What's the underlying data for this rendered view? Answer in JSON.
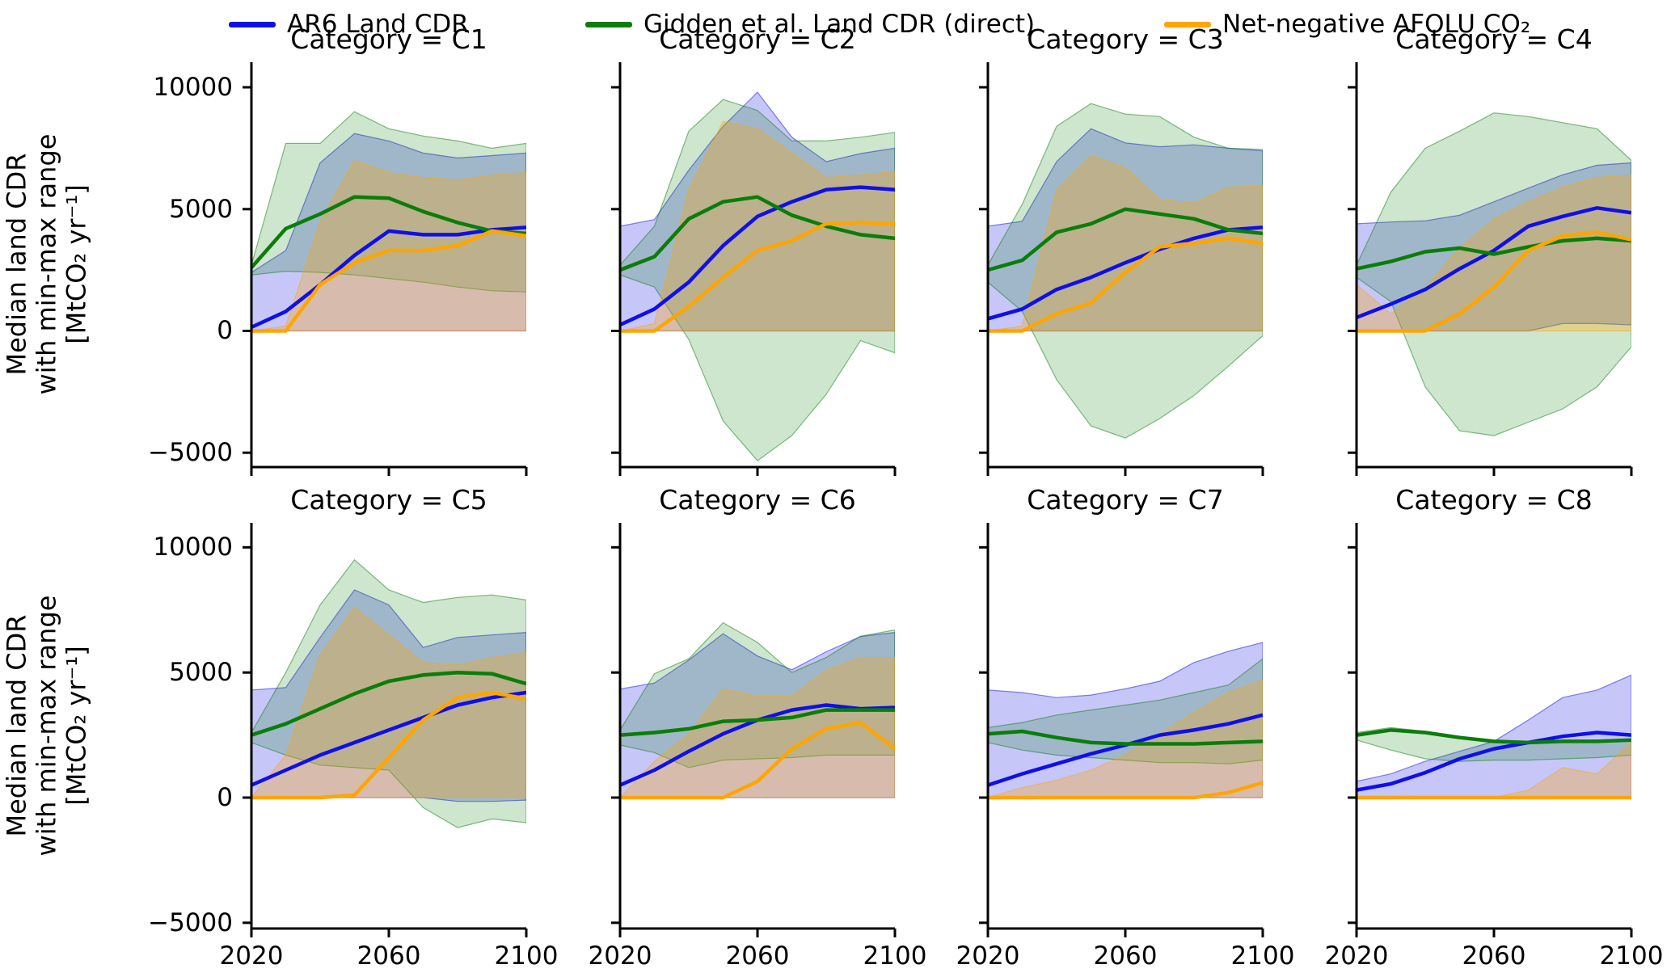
{
  "chart_data": {
    "type": "line",
    "title": "",
    "xlabel": "",
    "ylabel_lines": [
      "Median land CDR",
      "with min-max range",
      "[MtCO₂ yr⁻¹]"
    ],
    "x": [
      2020,
      2030,
      2040,
      2050,
      2060,
      2070,
      2080,
      2090,
      2100
    ],
    "xticks": [
      2020,
      2060,
      2100
    ],
    "xtick_labels": [
      "2020",
      "2060",
      "2100"
    ],
    "yticks": [
      -5000,
      0,
      5000,
      10000
    ],
    "ytick_labels": [
      "−5000",
      "0",
      "5000",
      "10000"
    ],
    "ylim": [
      -5600,
      11000
    ],
    "grid": false,
    "legend_position": "top",
    "legend": [
      {
        "key": "ar6",
        "label": "AR6 Land CDR",
        "color": "#0f0fe8"
      },
      {
        "key": "gidden",
        "label": "Gidden et al. Land CDR (direct)",
        "color": "#0a7d0a"
      },
      {
        "key": "afolu",
        "label": "Net-negative AFOLU CO₂",
        "color": "#ffa500"
      }
    ],
    "panels": [
      {
        "title": "Category = C1",
        "series": {
          "ar6": {
            "median": [
              150,
              800,
              1900,
              3100,
              4100,
              3950,
              3950,
              4150,
              4250
            ],
            "min": [
              0,
              0,
              0,
              0,
              0,
              0,
              0,
              0,
              0
            ],
            "max": [
              2400,
              3300,
              6900,
              8100,
              7800,
              7300,
              7100,
              7200,
              7300
            ]
          },
          "gidden": {
            "median": [
              2600,
              4200,
              4800,
              5500,
              5450,
              4900,
              4450,
              4100,
              4000
            ],
            "min": [
              2300,
              2450,
              2400,
              2300,
              2150,
              2000,
              1800,
              1650,
              1600
            ],
            "max": [
              2700,
              7700,
              7700,
              9000,
              8300,
              8000,
              7800,
              7500,
              7700
            ]
          },
          "afolu": {
            "median": [
              0,
              0,
              1900,
              2800,
              3300,
              3300,
              3500,
              4100,
              3900
            ],
            "min": [
              0,
              0,
              0,
              0,
              0,
              0,
              0,
              0,
              0
            ],
            "max": [
              0,
              200,
              4500,
              7000,
              6500,
              6300,
              6200,
              6400,
              6500
            ]
          }
        }
      },
      {
        "title": "Category = C2",
        "series": {
          "ar6": {
            "median": [
              250,
              900,
              2000,
              3500,
              4700,
              5300,
              5800,
              5900,
              5800
            ],
            "min": [
              0,
              0,
              0,
              0,
              0,
              0,
              0,
              0,
              0
            ],
            "max": [
              4300,
              4570,
              6600,
              8400,
              9800,
              7950,
              6950,
              7280,
              7500
            ]
          },
          "gidden": {
            "median": [
              2500,
              3050,
              4600,
              5300,
              5500,
              4750,
              4300,
              3950,
              3800
            ],
            "min": [
              2300,
              1800,
              -350,
              -3700,
              -5330,
              -4300,
              -2600,
              -400,
              -900
            ],
            "max": [
              2700,
              4300,
              8200,
              9500,
              9050,
              7800,
              7800,
              7950,
              8150
            ]
          },
          "afolu": {
            "median": [
              0,
              0,
              1000,
              2200,
              3300,
              3700,
              4400,
              4450,
              4400
            ],
            "min": [
              0,
              0,
              0,
              0,
              0,
              0,
              0,
              0,
              0
            ],
            "max": [
              0,
              300,
              5800,
              8600,
              8300,
              7300,
              6300,
              6400,
              6550
            ]
          }
        }
      },
      {
        "title": "Category = C3",
        "series": {
          "ar6": {
            "median": [
              500,
              900,
              1700,
              2200,
              2800,
              3350,
              3800,
              4150,
              4250
            ],
            "min": [
              0,
              0,
              0,
              0,
              0,
              0,
              0,
              0,
              0
            ],
            "max": [
              4300,
              4500,
              6950,
              8300,
              7720,
              7560,
              7640,
              7500,
              7390
            ]
          },
          "gidden": {
            "median": [
              2500,
              2900,
              4050,
              4400,
              5000,
              4800,
              4600,
              4150,
              4000
            ],
            "min": [
              2000,
              800,
              -2000,
              -3900,
              -4400,
              -3600,
              -2650,
              -1450,
              -200
            ],
            "max": [
              2700,
              5200,
              8400,
              9330,
              8900,
              8800,
              7950,
              7500,
              7450
            ]
          },
          "afolu": {
            "median": [
              0,
              0,
              700,
              1150,
              2400,
              3450,
              3600,
              3800,
              3600
            ],
            "min": [
              0,
              0,
              0,
              0,
              0,
              0,
              0,
              0,
              0
            ],
            "max": [
              0,
              200,
              5800,
              7200,
              6700,
              5400,
              5250,
              5900,
              5950
            ]
          }
        }
      },
      {
        "title": "Category = C4",
        "series": {
          "ar6": {
            "median": [
              550,
              1100,
              1700,
              2550,
              3300,
              4300,
              4700,
              5050,
              4850
            ],
            "min": [
              0,
              0,
              0,
              0,
              0,
              0,
              300,
              300,
              250
            ],
            "max": [
              4400,
              4470,
              4520,
              4750,
              5300,
              5860,
              6410,
              6800,
              6900
            ]
          },
          "gidden": {
            "median": [
              2550,
              2850,
              3250,
              3400,
              3150,
              3450,
              3700,
              3800,
              3700
            ],
            "min": [
              2200,
              1200,
              -2300,
              -4100,
              -4300,
              -3750,
              -3200,
              -2300,
              -650
            ],
            "max": [
              2700,
              5700,
              7500,
              8200,
              8950,
              8800,
              8550,
              8300,
              7000
            ]
          },
          "afolu": {
            "median": [
              0,
              0,
              0,
              700,
              1800,
              3300,
              3900,
              4050,
              3750
            ],
            "min": [
              0,
              0,
              0,
              0,
              0,
              0,
              0,
              0,
              0
            ],
            "max": [
              1900,
              700,
              1800,
              3400,
              4600,
              5300,
              5900,
              6300,
              6400
            ]
          }
        }
      },
      {
        "title": "Category = C5",
        "series": {
          "ar6": {
            "median": [
              500,
              1100,
              1700,
              2200,
              2700,
              3200,
              3700,
              4000,
              4200
            ],
            "min": [
              0,
              0,
              0,
              0,
              0,
              0,
              -150,
              -150,
              -100
            ],
            "max": [
              4300,
              4400,
              6400,
              8300,
              7700,
              6000,
              6400,
              6500,
              6600
            ]
          },
          "gidden": {
            "median": [
              2500,
              2950,
              3550,
              4150,
              4650,
              4900,
              5000,
              4950,
              4550
            ],
            "min": [
              2200,
              1700,
              1300,
              1200,
              1100,
              -400,
              -1200,
              -850,
              -1000
            ],
            "max": [
              2600,
              5000,
              7700,
              9500,
              8300,
              7800,
              8000,
              8100,
              7900
            ]
          },
          "afolu": {
            "median": [
              0,
              0,
              0,
              100,
              1600,
              3100,
              4000,
              4200,
              3950
            ],
            "min": [
              0,
              0,
              0,
              0,
              0,
              0,
              0,
              0,
              0
            ],
            "max": [
              0,
              1700,
              5700,
              7600,
              6500,
              5400,
              5300,
              5600,
              5800
            ]
          }
        }
      },
      {
        "title": "Category = C6",
        "series": {
          "ar6": {
            "median": [
              500,
              1100,
              1850,
              2550,
              3100,
              3500,
              3700,
              3550,
              3600
            ],
            "min": [
              0,
              0,
              0,
              0,
              0,
              0,
              0,
              0,
              0
            ],
            "max": [
              4340,
              4580,
              5500,
              6550,
              5660,
              5110,
              5830,
              6440,
              6600
            ]
          },
          "gidden": {
            "median": [
              2500,
              2600,
              2750,
              3050,
              3100,
              3200,
              3500,
              3500,
              3500
            ],
            "min": [
              2100,
              1800,
              1200,
              1500,
              1550,
              1600,
              1700,
              1700,
              1700
            ],
            "max": [
              2700,
              4950,
              5550,
              6990,
              6200,
              5000,
              5600,
              6450,
              6700
            ]
          },
          "afolu": {
            "median": [
              0,
              0,
              0,
              0,
              650,
              1950,
              2750,
              3000,
              1950
            ],
            "min": [
              0,
              0,
              0,
              0,
              0,
              0,
              0,
              0,
              0
            ],
            "max": [
              0,
              1450,
              2550,
              4350,
              4050,
              4050,
              5100,
              5600,
              5600
            ]
          }
        }
      },
      {
        "title": "Category = C7",
        "series": {
          "ar6": {
            "median": [
              500,
              950,
              1350,
              1750,
              2100,
              2500,
              2700,
              2950,
              3300
            ],
            "min": [
              0,
              0,
              0,
              0,
              0,
              0,
              0,
              0,
              0
            ],
            "max": [
              4300,
              4200,
              4000,
              4100,
              4350,
              4650,
              5400,
              5850,
              6200
            ]
          },
          "gidden": {
            "median": [
              2550,
              2650,
              2400,
              2200,
              2150,
              2150,
              2150,
              2200,
              2250
            ],
            "min": [
              2200,
              1900,
              1700,
              1600,
              1500,
              1400,
              1400,
              1350,
              1500
            ],
            "max": [
              2800,
              3000,
              3300,
              3500,
              3700,
              3900,
              4200,
              4500,
              5550
            ]
          },
          "afolu": {
            "median": [
              0,
              0,
              0,
              0,
              0,
              0,
              0,
              200,
              600
            ],
            "min": [
              0,
              0,
              0,
              0,
              0,
              0,
              0,
              0,
              0
            ],
            "max": [
              0,
              400,
              700,
              1100,
              1700,
              2550,
              3400,
              4200,
              4700
            ]
          }
        }
      },
      {
        "title": "Category = C8",
        "series": {
          "ar6": {
            "median": [
              300,
              550,
              1000,
              1550,
              1950,
              2200,
              2450,
              2600,
              2500
            ],
            "min": [
              0,
              0,
              0,
              0,
              0,
              0,
              0,
              0,
              0
            ],
            "max": [
              650,
              950,
              1450,
              1850,
              2250,
              3100,
              4000,
              4300,
              4900
            ]
          },
          "gidden": {
            "median": [
              2500,
              2700,
              2600,
              2400,
              2250,
              2200,
              2250,
              2250,
              2300
            ],
            "min": [
              2300,
              1900,
              1550,
              1450,
              1500,
              1500,
              1550,
              1600,
              1700
            ],
            "max": [
              2600,
              2800,
              2650,
              2450,
              2300,
              2250,
              2300,
              2300,
              2350
            ]
          },
          "afolu": {
            "median": [
              0,
              0,
              0,
              0,
              0,
              0,
              0,
              0,
              0
            ],
            "min": [
              0,
              0,
              0,
              0,
              0,
              0,
              0,
              0,
              0
            ],
            "max": [
              0,
              0,
              0,
              0,
              0,
              300,
              1200,
              950,
              2200
            ]
          }
        }
      }
    ]
  }
}
